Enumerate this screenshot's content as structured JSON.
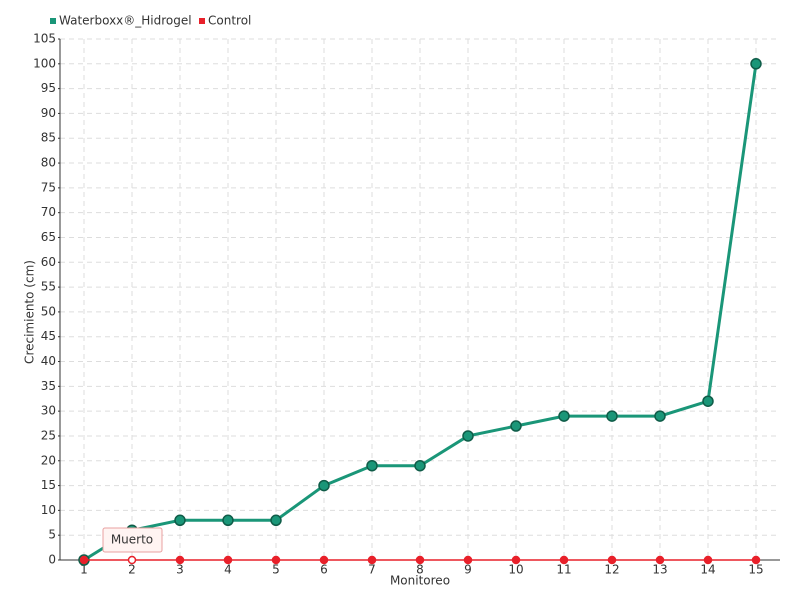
{
  "chart_data": {
    "type": "line",
    "x_label": "Monitoreo",
    "y_label": "Crecimiento (cm)",
    "categories": [
      "1",
      "2",
      "3",
      "4",
      "5",
      "6",
      "7",
      "8",
      "9",
      "10",
      "11",
      "12",
      "13",
      "14",
      "15"
    ],
    "series": [
      {
        "name": "Waterboxx®_Hidrogel",
        "color": "#1a9678",
        "values": [
          0,
          6,
          8,
          8,
          8,
          15,
          19,
          19,
          25,
          27,
          29,
          29,
          29,
          32,
          100
        ]
      },
      {
        "name": "Control",
        "color": "#e8202a",
        "values": [
          0,
          0,
          0,
          0,
          0,
          0,
          0,
          0,
          0,
          0,
          0,
          0,
          0,
          0,
          0
        ]
      }
    ],
    "annotation": "Muerto",
    "ylim": [
      0,
      105
    ],
    "yticks": [
      0,
      5,
      10,
      15,
      20,
      25,
      30,
      35,
      40,
      45,
      50,
      55,
      60,
      65,
      70,
      75,
      80,
      85,
      90,
      95,
      100,
      105
    ],
    "grid": true
  }
}
